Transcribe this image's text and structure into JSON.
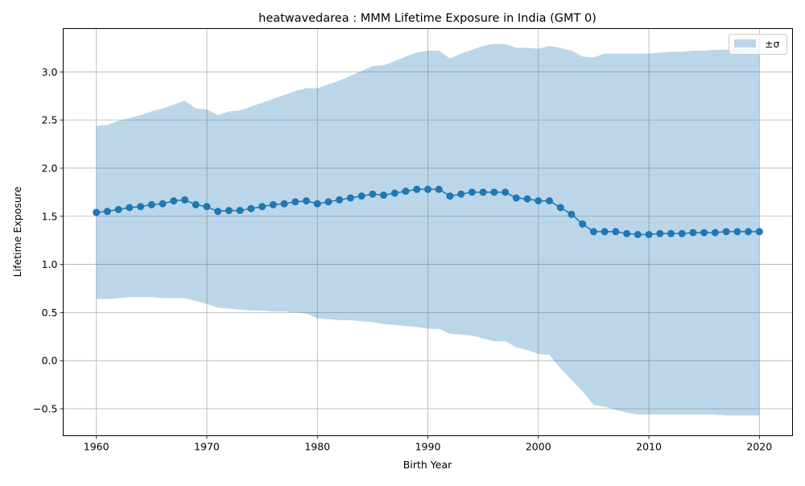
{
  "chart_data": {
    "type": "line",
    "title": "heatwavedarea : MMM Lifetime Exposure in India (GMT 0)",
    "xlabel": "Birth Year",
    "ylabel": "Lifetime Exposure",
    "xlim": [
      1957,
      2023
    ],
    "ylim": [
      -0.78,
      3.45
    ],
    "xticks": [
      1960,
      1970,
      1980,
      1990,
      2000,
      2010,
      2020
    ],
    "yticks": [
      -0.5,
      0.0,
      0.5,
      1.0,
      1.5,
      2.0,
      2.5,
      3.0
    ],
    "ytick_labels": [
      "−0.5",
      "0.0",
      "0.5",
      "1.0",
      "1.5",
      "2.0",
      "2.5",
      "3.0"
    ],
    "grid": true,
    "legend": {
      "position": "upper right",
      "entries": [
        "±σ"
      ]
    },
    "colors": {
      "line": "#1f77b4",
      "band": "#1f77b4",
      "grid": "#b0b0b0"
    },
    "x": [
      1960,
      1961,
      1962,
      1963,
      1964,
      1965,
      1966,
      1967,
      1968,
      1969,
      1970,
      1971,
      1972,
      1973,
      1974,
      1975,
      1976,
      1977,
      1978,
      1979,
      1980,
      1981,
      1982,
      1983,
      1984,
      1985,
      1986,
      1987,
      1988,
      1989,
      1990,
      1991,
      1992,
      1993,
      1994,
      1995,
      1996,
      1997,
      1998,
      1999,
      2000,
      2001,
      2002,
      2003,
      2004,
      2005,
      2006,
      2007,
      2008,
      2009,
      2010,
      2011,
      2012,
      2013,
      2014,
      2015,
      2016,
      2017,
      2018,
      2019,
      2020
    ],
    "series": [
      {
        "values": [
          1.54,
          1.55,
          1.57,
          1.59,
          1.6,
          1.62,
          1.63,
          1.66,
          1.67,
          1.62,
          1.6,
          1.55,
          1.56,
          1.56,
          1.58,
          1.6,
          1.62,
          1.63,
          1.65,
          1.66,
          1.63,
          1.65,
          1.67,
          1.69,
          1.71,
          1.73,
          1.72,
          1.74,
          1.76,
          1.78,
          1.78,
          1.78,
          1.71,
          1.73,
          1.75,
          1.75,
          1.75,
          1.75,
          1.69,
          1.68,
          1.66,
          1.66,
          1.59,
          1.52,
          1.42,
          1.34,
          1.34,
          1.34,
          1.32,
          1.31,
          1.31,
          1.32,
          1.32,
          1.32,
          1.33,
          1.33,
          1.33,
          1.34,
          1.34,
          1.34,
          1.34
        ]
      },
      {
        "name": "±σ",
        "upper": [
          2.44,
          2.45,
          2.49,
          2.52,
          2.55,
          2.59,
          2.62,
          2.66,
          2.7,
          2.62,
          2.61,
          2.55,
          2.59,
          2.6,
          2.64,
          2.68,
          2.72,
          2.76,
          2.8,
          2.83,
          2.83,
          2.87,
          2.91,
          2.96,
          3.01,
          3.06,
          3.07,
          3.11,
          3.16,
          3.2,
          3.22,
          3.22,
          3.14,
          3.19,
          3.23,
          3.27,
          3.29,
          3.29,
          3.25,
          3.25,
          3.24,
          3.27,
          3.25,
          3.22,
          3.16,
          3.15,
          3.19,
          3.19,
          3.19,
          3.19,
          3.19,
          3.2,
          3.21,
          3.21,
          3.22,
          3.22,
          3.23,
          3.23,
          3.24,
          3.24,
          3.24
        ],
        "lower": [
          0.64,
          0.64,
          0.65,
          0.66,
          0.66,
          0.66,
          0.65,
          0.65,
          0.65,
          0.62,
          0.59,
          0.55,
          0.54,
          0.53,
          0.52,
          0.52,
          0.51,
          0.51,
          0.5,
          0.49,
          0.44,
          0.43,
          0.42,
          0.42,
          0.41,
          0.4,
          0.38,
          0.37,
          0.36,
          0.35,
          0.33,
          0.33,
          0.28,
          0.27,
          0.26,
          0.23,
          0.2,
          0.2,
          0.14,
          0.11,
          0.07,
          0.06,
          -0.08,
          -0.2,
          -0.32,
          -0.46,
          -0.48,
          -0.51,
          -0.54,
          -0.56,
          -0.56,
          -0.56,
          -0.56,
          -0.56,
          -0.56,
          -0.56,
          -0.56,
          -0.57,
          -0.57,
          -0.57,
          -0.57
        ]
      }
    ]
  }
}
